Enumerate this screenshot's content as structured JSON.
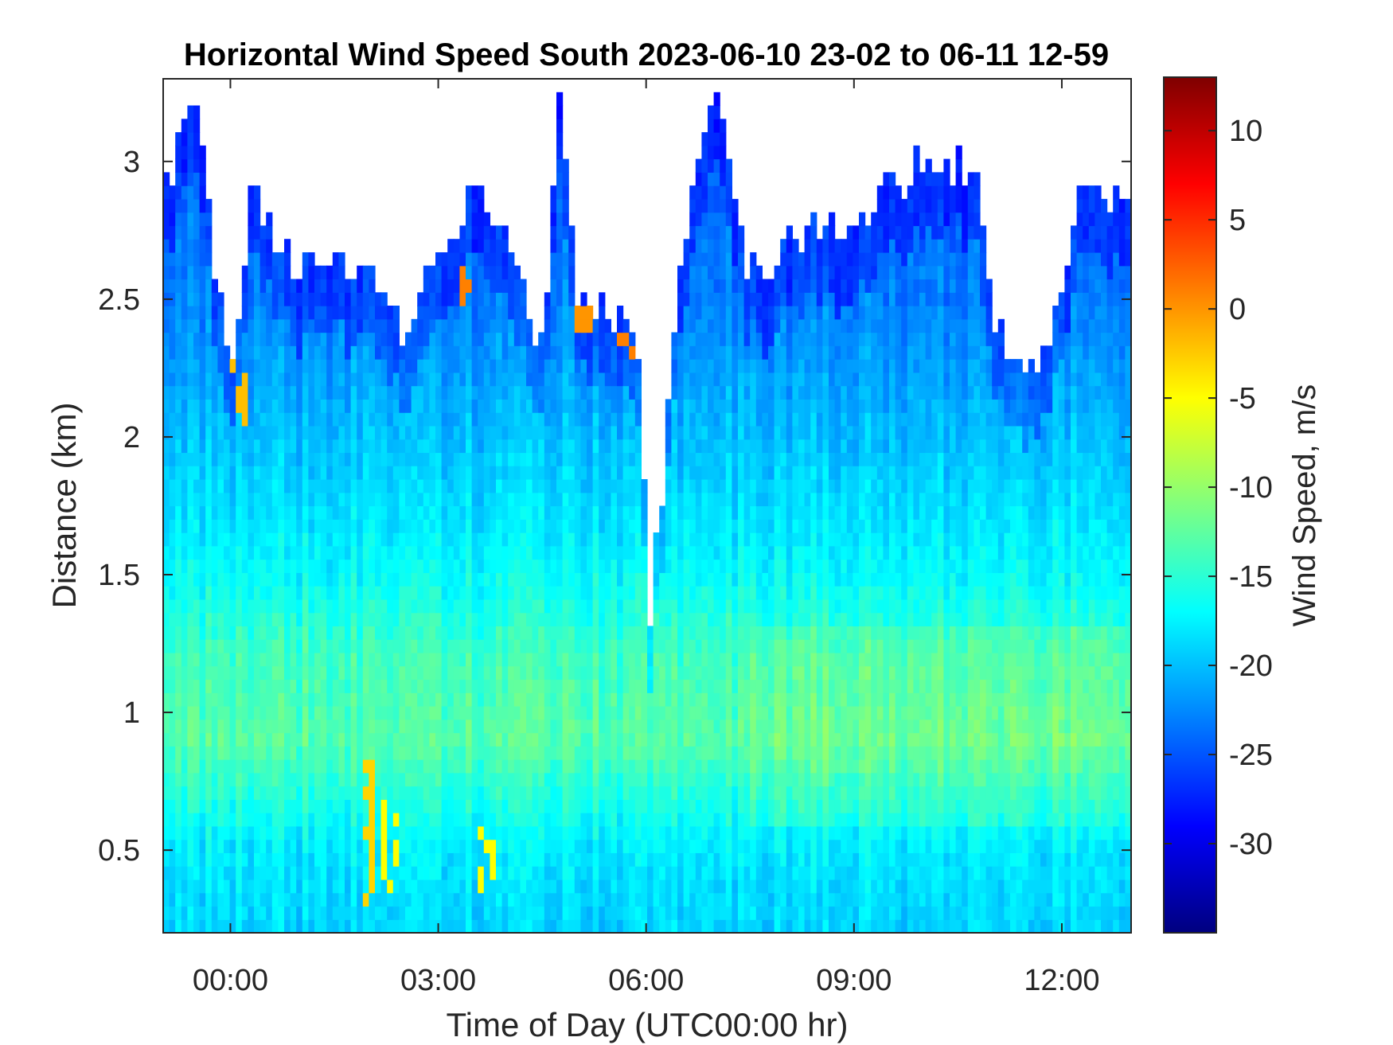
{
  "chart_data": {
    "type": "heatmap",
    "title": "Horizontal Wind Speed South 2023-06-10 23-02 to 06-11 12-59",
    "xlabel": "Time of Day (UTC00:00 hr)",
    "ylabel": "Distance (km)",
    "colorbar_label": "Wind Speed, m/s",
    "colormap": "jet",
    "x_range_hours": [
      -0.97,
      13.0
    ],
    "x_ticks": [
      0,
      3,
      6,
      9,
      12
    ],
    "x_tick_labels": [
      "00:00",
      "03:00",
      "06:00",
      "09:00",
      "12:00"
    ],
    "y_range_km": [
      0.2,
      3.3
    ],
    "y_ticks": [
      0.5,
      1,
      1.5,
      2,
      2.5,
      3
    ],
    "y_tick_labels": [
      "0.5",
      "1",
      "1.5",
      "2",
      "2.5",
      "3"
    ],
    "c_range": [
      -35,
      13
    ],
    "c_ticks": [
      -30,
      -25,
      -20,
      -15,
      -10,
      -5,
      0,
      5,
      10
    ],
    "c_tick_labels": [
      "-30",
      "-25",
      "-20",
      "-15",
      "-10",
      "-5",
      "0",
      "5",
      "10"
    ],
    "background_color": "#ffffff",
    "data_description": {
      "speed_profile_km": [
        0.2,
        0.5,
        0.9,
        1.2,
        1.5,
        2.0,
        2.5,
        3.0,
        3.3
      ],
      "speed_profile_ms": [
        -19,
        -18,
        -13,
        -14,
        -17,
        -20,
        -23,
        -24,
        -25
      ],
      "data_top_km_by_hour": [
        [
          -0.97,
          2.9
        ],
        [
          -0.5,
          3.2
        ],
        [
          0.0,
          2.2
        ],
        [
          0.3,
          2.9
        ],
        [
          1.0,
          2.6
        ],
        [
          2.0,
          2.6
        ],
        [
          2.5,
          2.4
        ],
        [
          3.0,
          2.6
        ],
        [
          3.5,
          2.9
        ],
        [
          4.0,
          2.7
        ],
        [
          4.5,
          2.3
        ],
        [
          4.75,
          3.3
        ],
        [
          5.0,
          2.5
        ],
        [
          5.6,
          2.4
        ],
        [
          5.9,
          2.3
        ],
        [
          6.05,
          1.3
        ],
        [
          6.5,
          2.6
        ],
        [
          7.0,
          3.3
        ],
        [
          7.5,
          2.6
        ],
        [
          9.0,
          2.8
        ],
        [
          10.0,
          3.0
        ],
        [
          10.8,
          3.0
        ],
        [
          11.0,
          2.4
        ],
        [
          11.5,
          2.2
        ],
        [
          11.8,
          2.3
        ],
        [
          12.3,
          2.9
        ],
        [
          13.0,
          2.9
        ]
      ],
      "positive_patches": [
        {
          "hour": 0.1,
          "km": [
            2.05,
            2.3
          ],
          "speed_ms": -2
        },
        {
          "hour": 3.4,
          "km": [
            2.5,
            2.6
          ],
          "speed_ms": 1
        },
        {
          "hour": 5.1,
          "km": [
            2.38,
            2.48
          ],
          "speed_ms": 0
        },
        {
          "hour": 5.7,
          "km": [
            2.28,
            2.38
          ],
          "speed_ms": 1
        },
        {
          "hour": 2.0,
          "km": [
            0.3,
            0.9
          ],
          "speed_ms": -3
        },
        {
          "hour": 2.3,
          "km": [
            0.3,
            0.7
          ],
          "speed_ms": -5
        },
        {
          "hour": 3.7,
          "km": [
            0.3,
            0.6
          ],
          "speed_ms": -5
        }
      ]
    }
  }
}
